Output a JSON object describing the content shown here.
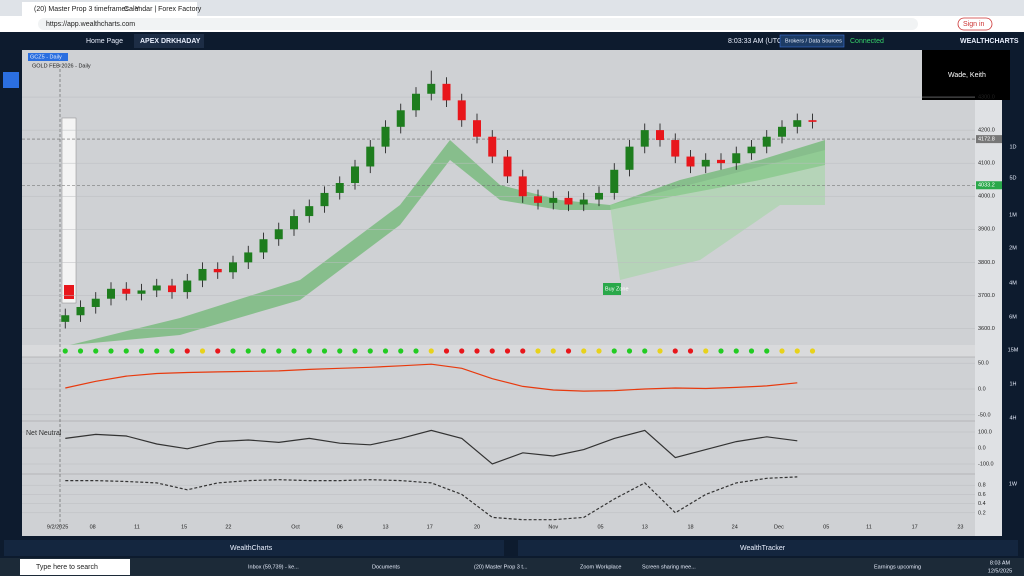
{
  "browser": {
    "tabs": [
      "(20) Master Prop 3 timeframes - Y",
      "Calendar | Forex Factory"
    ],
    "url": "https://app.wealthcharts.com",
    "sign_in": "Sign in"
  },
  "toolbar": {
    "tabs": [
      "Home Page",
      "APEX DRKHADAY"
    ],
    "time": "8:03:33 AM (UTC -5)",
    "brokers": "Brokers / Data Sources",
    "status": "Connected",
    "brand": "WEALTHCHARTS"
  },
  "popup": {
    "user": "Wade, Keith"
  },
  "timeframes": [
    "1D",
    "5D",
    "1M",
    "2M",
    "4M",
    "6M",
    "15M",
    "1H",
    "4H",
    "1W"
  ],
  "chart_data": [
    {
      "type": "candlestick",
      "symbol_tag": "GCZ5 - Daily",
      "title": "GOLD FEB 2026 - Daily",
      "annotation": "Buy Zone",
      "up_color": "#1e7d1e",
      "down_color": "#e8161b",
      "candles": [
        [
          3620,
          3660,
          3600,
          3640
        ],
        [
          3640,
          3685,
          3620,
          3665
        ],
        [
          3665,
          3710,
          3645,
          3690
        ],
        [
          3690,
          3740,
          3670,
          3720
        ],
        [
          3720,
          3740,
          3685,
          3705
        ],
        [
          3705,
          3735,
          3685,
          3715
        ],
        [
          3715,
          3750,
          3695,
          3730
        ],
        [
          3730,
          3750,
          3690,
          3710
        ],
        [
          3710,
          3765,
          3690,
          3745
        ],
        [
          3745,
          3800,
          3725,
          3780
        ],
        [
          3780,
          3800,
          3750,
          3770
        ],
        [
          3770,
          3820,
          3750,
          3800
        ],
        [
          3800,
          3850,
          3780,
          3830
        ],
        [
          3830,
          3890,
          3810,
          3870
        ],
        [
          3870,
          3920,
          3850,
          3900
        ],
        [
          3900,
          3960,
          3880,
          3940
        ],
        [
          3940,
          3990,
          3920,
          3970
        ],
        [
          3970,
          4030,
          3950,
          4010
        ],
        [
          4010,
          4060,
          3990,
          4040
        ],
        [
          4040,
          4110,
          4020,
          4090
        ],
        [
          4090,
          4170,
          4070,
          4150
        ],
        [
          4150,
          4230,
          4130,
          4210
        ],
        [
          4210,
          4280,
          4190,
          4260
        ],
        [
          4260,
          4330,
          4240,
          4310
        ],
        [
          4310,
          4380,
          4290,
          4340
        ],
        [
          4340,
          4360,
          4270,
          4290
        ],
        [
          4290,
          4310,
          4210,
          4230
        ],
        [
          4230,
          4250,
          4160,
          4180
        ],
        [
          4180,
          4200,
          4100,
          4120
        ],
        [
          4120,
          4140,
          4040,
          4060
        ],
        [
          4060,
          4080,
          3980,
          4000
        ],
        [
          4000,
          4020,
          3960,
          3980
        ],
        [
          3980,
          4015,
          3960,
          3995
        ],
        [
          3995,
          4015,
          3955,
          3975
        ],
        [
          3975,
          4010,
          3955,
          3990
        ],
        [
          3990,
          4030,
          3970,
          4010
        ],
        [
          4010,
          4100,
          3990,
          4080
        ],
        [
          4080,
          4170,
          4060,
          4150
        ],
        [
          4150,
          4220,
          4130,
          4200
        ],
        [
          4200,
          4220,
          4150,
          4170
        ],
        [
          4170,
          4190,
          4100,
          4120
        ],
        [
          4120,
          4140,
          4070,
          4090
        ],
        [
          4090,
          4130,
          4070,
          4110
        ],
        [
          4110,
          4130,
          4080,
          4100
        ],
        [
          4100,
          4150,
          4080,
          4130
        ],
        [
          4130,
          4170,
          4110,
          4150
        ],
        [
          4150,
          4200,
          4130,
          4180
        ],
        [
          4180,
          4230,
          4160,
          4210
        ],
        [
          4210,
          4250,
          4190,
          4230
        ],
        [
          4230,
          4250,
          4205,
          4225
        ]
      ],
      "ylim": [
        3550,
        4400
      ],
      "yticks": [
        {
          "value": 3600,
          "label": "3600.0"
        },
        {
          "value": 3700,
          "label": "3700.0"
        },
        {
          "value": 3800,
          "label": "3800.0"
        },
        {
          "value": 3900,
          "label": "3900.0"
        },
        {
          "value": 4000,
          "label": "4000.0"
        },
        {
          "value": 4100,
          "label": "4100.0"
        },
        {
          "value": 4200,
          "label": "4200.0"
        },
        {
          "value": 4300,
          "label": "4300.0"
        }
      ],
      "levels": [
        4172.8,
        4033.2
      ],
      "xlim": [
        -1,
        59
      ],
      "xticks": [
        {
          "value": -0.5,
          "label": "9/2/2025"
        },
        {
          "value": 1.8,
          "label": "08"
        },
        {
          "value": 4.7,
          "label": "11"
        },
        {
          "value": 7.8,
          "label": "15"
        },
        {
          "value": 10.7,
          "label": "22"
        },
        {
          "value": 15.1,
          "label": "Oct"
        },
        {
          "value": 18,
          "label": "06"
        },
        {
          "value": 21,
          "label": "13"
        },
        {
          "value": 23.9,
          "label": "17"
        },
        {
          "value": 27,
          "label": "20"
        },
        {
          "value": 32,
          "label": "Nov"
        },
        {
          "value": 35.1,
          "label": "05"
        },
        {
          "value": 38,
          "label": "13"
        },
        {
          "value": 41,
          "label": "18"
        },
        {
          "value": 43.9,
          "label": "24"
        },
        {
          "value": 46.8,
          "label": "Dec"
        },
        {
          "value": 49.9,
          "label": "05"
        },
        {
          "value": 52.7,
          "label": "11"
        },
        {
          "value": 55.7,
          "label": "17"
        },
        {
          "value": 58.7,
          "label": "23"
        }
      ]
    },
    {
      "type": "signal-dots",
      "colors": [
        "#22cc22",
        "#22cc22",
        "#22cc22",
        "#22cc22",
        "#22cc22",
        "#22cc22",
        "#22cc22",
        "#22cc22",
        "#e8161b",
        "#e8d21b",
        "#e8161b",
        "#22cc22",
        "#22cc22",
        "#22cc22",
        "#22cc22",
        "#22cc22",
        "#22cc22",
        "#22cc22",
        "#22cc22",
        "#22cc22",
        "#22cc22",
        "#22cc22",
        "#22cc22",
        "#22cc22",
        "#e8d21b",
        "#e8161b",
        "#e8161b",
        "#e8161b",
        "#e8161b",
        "#e8161b",
        "#e8161b",
        "#e8d21b",
        "#e8d21b",
        "#e8161b",
        "#e8d21b",
        "#e8d21b",
        "#22cc22",
        "#22cc22",
        "#22cc22",
        "#e8d21b",
        "#e8161b",
        "#e8161b",
        "#e8d21b",
        "#22cc22",
        "#22cc22",
        "#22cc22",
        "#22cc22",
        "#e8d21b",
        "#e8d21b",
        "#e8d21b"
      ]
    },
    {
      "type": "line",
      "color": "#e83a0e",
      "x": [
        0,
        2,
        4,
        6,
        8,
        10,
        12,
        14,
        16,
        18,
        20,
        22,
        24,
        26,
        28,
        30,
        32,
        34,
        36,
        38,
        40,
        42,
        44,
        46,
        48
      ],
      "values": [
        2,
        15,
        25,
        30,
        32,
        33,
        34,
        35,
        38,
        40,
        42,
        45,
        48,
        40,
        20,
        5,
        -2,
        -4,
        -3,
        0,
        2,
        1,
        3,
        6,
        12
      ],
      "ylim": [
        -60,
        60
      ],
      "yticks": [
        {
          "value": 50,
          "label": "50.0"
        },
        {
          "value": 0,
          "label": "0.0"
        },
        {
          "value": -50,
          "label": "-50.0"
        }
      ]
    },
    {
      "type": "line",
      "title": "Net Neutral",
      "color": "#333333",
      "x": [
        0,
        2,
        4,
        6,
        8,
        10,
        12,
        14,
        16,
        18,
        20,
        22,
        24,
        26,
        28,
        30,
        32,
        34,
        36,
        38,
        40,
        42,
        44,
        46,
        48
      ],
      "values": [
        60,
        85,
        75,
        25,
        -5,
        40,
        50,
        35,
        60,
        30,
        20,
        60,
        110,
        60,
        -100,
        -30,
        -50,
        -10,
        60,
        110,
        -60,
        -10,
        40,
        70,
        45
      ],
      "ylim": [
        -150,
        150
      ],
      "yticks": [
        {
          "value": 100,
          "label": "100.0"
        },
        {
          "value": 0,
          "label": "0.0"
        },
        {
          "value": -100,
          "label": "-100.0"
        }
      ]
    },
    {
      "type": "line",
      "color": "#333333",
      "dashed": true,
      "x": [
        0,
        2,
        4,
        6,
        8,
        10,
        12,
        14,
        16,
        18,
        20,
        22,
        24,
        26,
        28,
        30,
        32,
        34,
        36,
        38,
        40,
        42,
        44,
        46,
        48
      ],
      "values": [
        0.9,
        0.9,
        0.88,
        0.85,
        0.7,
        0.85,
        0.9,
        0.92,
        0.9,
        0.9,
        0.92,
        0.9,
        0.85,
        0.6,
        0.1,
        0.05,
        0.05,
        0.1,
        0.5,
        0.85,
        0.2,
        0.6,
        0.85,
        0.95,
        0.98
      ],
      "ylim": [
        0,
        1
      ],
      "yticks": [
        0.2,
        0.4,
        0.6,
        0.8
      ]
    }
  ],
  "footer": [
    "WealthCharts",
    "WealthTracker"
  ],
  "taskbar": {
    "search": "Type here to search",
    "apps": [
      "Inbox (59,739) - ke...",
      "Documents",
      "(20) Master Prop 3 t...",
      "Zoom Workplace",
      "Screen sharing mee..."
    ],
    "news": "Earnings upcoming",
    "time": "8:03 AM",
    "date": "12/5/2025"
  }
}
